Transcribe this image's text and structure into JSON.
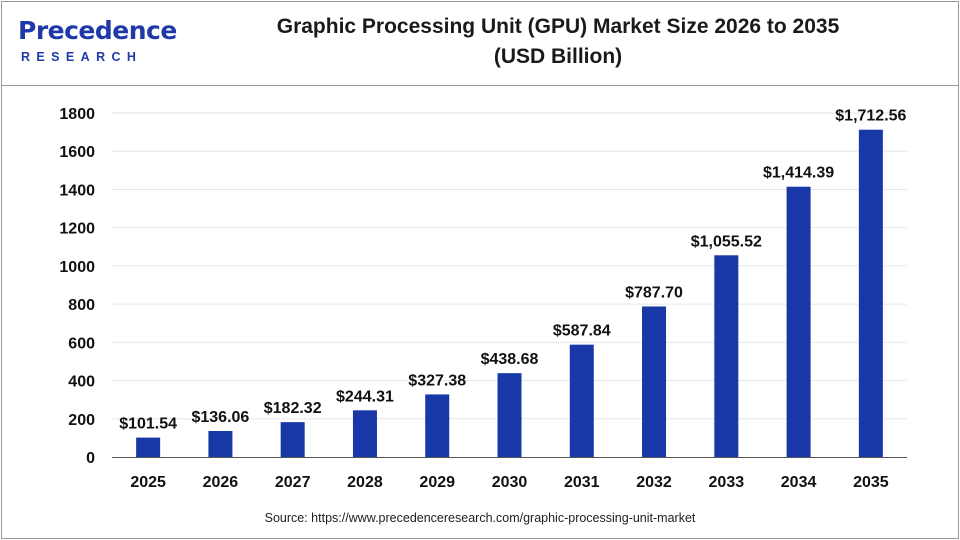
{
  "header": {
    "logo_word": "Precedence",
    "logo_sub": "RESEARCH",
    "title_line1": "Graphic Processing Unit (GPU) Market Size 2026 to 2035",
    "title_line2": "(USD Billion)"
  },
  "colors": {
    "bar": "#1838a8",
    "brand": "#1f3aa8",
    "grid": "#e6e6e6",
    "axis": "#555555",
    "text": "#111111"
  },
  "chart_data": {
    "type": "bar",
    "title": "Graphic Processing Unit (GPU) Market Size 2026 to 2035 (USD Billion)",
    "xlabel": "",
    "ylabel": "",
    "ylim": [
      0,
      1800
    ],
    "yticks": [
      "0",
      "200",
      "400",
      "600",
      "800",
      "1000",
      "1200",
      "1400",
      "1600",
      "1800"
    ],
    "grid": true,
    "categories": [
      "2025",
      "2026",
      "2027",
      "2028",
      "2029",
      "2030",
      "2031",
      "2032",
      "2033",
      "2034",
      "2035"
    ],
    "values": [
      101.54,
      136.06,
      182.32,
      244.31,
      327.38,
      438.68,
      587.84,
      787.7,
      1055.52,
      1414.39,
      1712.56
    ],
    "labels": [
      "$101.54",
      "$136.06",
      "$182.32",
      "$244.31",
      "$327.38",
      "$438.68",
      "$587.84",
      "$787.70",
      "$1,055.52",
      "$1,414.39",
      "$1,712.56"
    ]
  },
  "footer": {
    "source": "Source: https://www.precedenceresearch.com/graphic-processing-unit-market"
  }
}
